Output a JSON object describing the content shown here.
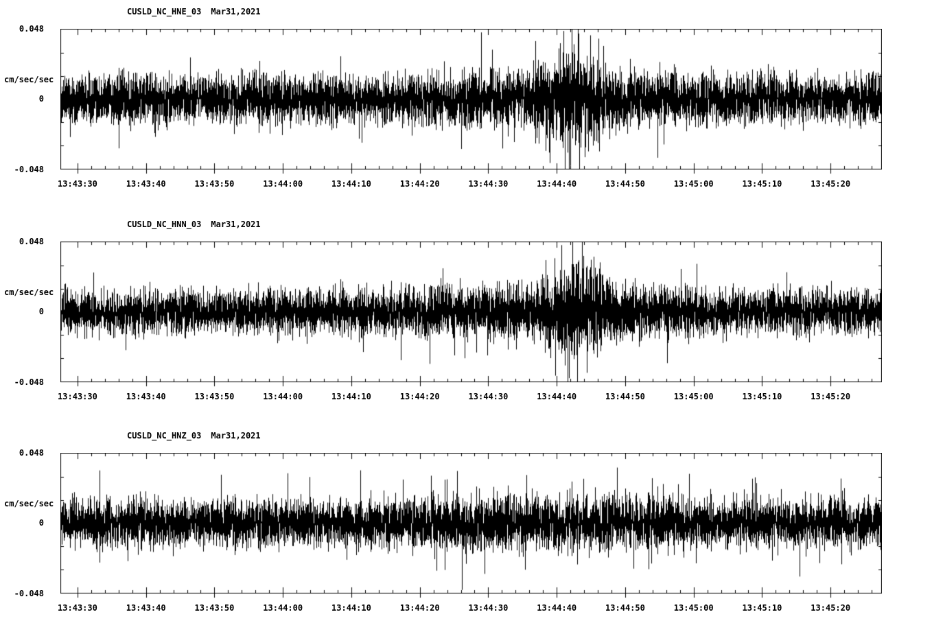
{
  "page": {
    "background": "#ffffff",
    "trace_color": "#000000"
  },
  "chart_data": [
    {
      "type": "line",
      "kind": "seismogram",
      "station": "CUSLD_NC_HNE_03",
      "date": "Mar31,2021",
      "ylabel": "cm/sec/sec",
      "y_top_label": "0.048",
      "y_zero_label": "0",
      "y_bottom_label": "-0.048",
      "ylim": [
        -0.048,
        0.048
      ],
      "x_ticks": [
        "13:43:30",
        "13:43:40",
        "13:43:50",
        "13:44:00",
        "13:44:10",
        "13:44:20",
        "13:44:30",
        "13:44:40",
        "13:44:50",
        "13:45:00",
        "13:45:10",
        "13:45:20"
      ],
      "time_span_sec": 120,
      "first_tick_offset_sec": 2.5,
      "major_tick_step_sec": 10,
      "minor_tick_step_sec": 2,
      "y_minor_ticks": [
        -0.032,
        -0.016,
        0.016,
        0.032
      ],
      "grid": false,
      "seed": 101,
      "spike_prob": 0.025,
      "envelope": [
        [
          0,
          0.016
        ],
        [
          0.08,
          0.017
        ],
        [
          0.15,
          0.015
        ],
        [
          0.22,
          0.017
        ],
        [
          0.3,
          0.016
        ],
        [
          0.38,
          0.015
        ],
        [
          0.45,
          0.017
        ],
        [
          0.52,
          0.018
        ],
        [
          0.56,
          0.019
        ],
        [
          0.6,
          0.026
        ],
        [
          0.62,
          0.032
        ],
        [
          0.64,
          0.03
        ],
        [
          0.66,
          0.024
        ],
        [
          0.69,
          0.02
        ],
        [
          0.73,
          0.018
        ],
        [
          0.8,
          0.017
        ],
        [
          0.88,
          0.018
        ],
        [
          0.95,
          0.016
        ],
        [
          1,
          0.017
        ]
      ],
      "transients": [
        [
          0.115,
          -0.026
        ],
        [
          0.367,
          -0.03
        ],
        [
          0.512,
          0.046
        ],
        [
          0.538,
          -0.034
        ],
        [
          0.578,
          0.04
        ],
        [
          0.596,
          -0.044
        ],
        [
          0.612,
          0.047
        ],
        [
          0.621,
          -0.046
        ],
        [
          0.63,
          0.048
        ],
        [
          0.638,
          -0.04
        ],
        [
          0.645,
          0.044
        ],
        [
          0.656,
          -0.036
        ]
      ]
    },
    {
      "type": "line",
      "kind": "seismogram",
      "station": "CUSLD_NC_HNN_03",
      "date": "Mar31,2021",
      "ylabel": "cm/sec/sec",
      "y_top_label": "0.048",
      "y_zero_label": "0",
      "y_bottom_label": "-0.048",
      "ylim": [
        -0.048,
        0.048
      ],
      "x_ticks": [
        "13:43:30",
        "13:43:40",
        "13:43:50",
        "13:44:00",
        "13:44:10",
        "13:44:20",
        "13:44:30",
        "13:44:40",
        "13:44:50",
        "13:45:00",
        "13:45:10",
        "13:45:20"
      ],
      "time_span_sec": 120,
      "first_tick_offset_sec": 2.5,
      "major_tick_step_sec": 10,
      "minor_tick_step_sec": 2,
      "y_minor_ticks": [
        -0.032,
        -0.016,
        0.016,
        0.032
      ],
      "grid": false,
      "seed": 202,
      "spike_prob": 0.02,
      "envelope": [
        [
          0,
          0.014
        ],
        [
          0.1,
          0.015
        ],
        [
          0.2,
          0.014
        ],
        [
          0.3,
          0.015
        ],
        [
          0.4,
          0.016
        ],
        [
          0.47,
          0.017
        ],
        [
          0.54,
          0.018
        ],
        [
          0.59,
          0.02
        ],
        [
          0.61,
          0.03
        ],
        [
          0.625,
          0.036
        ],
        [
          0.64,
          0.032
        ],
        [
          0.66,
          0.024
        ],
        [
          0.69,
          0.019
        ],
        [
          0.75,
          0.017
        ],
        [
          0.85,
          0.016
        ],
        [
          0.95,
          0.015
        ],
        [
          1,
          0.016
        ]
      ],
      "transients": [
        [
          0.3,
          -0.022
        ],
        [
          0.465,
          0.03
        ],
        [
          0.492,
          -0.032
        ],
        [
          0.506,
          -0.028
        ],
        [
          0.52,
          -0.03
        ],
        [
          0.545,
          -0.026
        ],
        [
          0.602,
          -0.044
        ],
        [
          0.61,
          0.046
        ],
        [
          0.617,
          -0.05
        ],
        [
          0.623,
          0.052
        ],
        [
          0.629,
          -0.048
        ],
        [
          0.635,
          0.05
        ],
        [
          0.641,
          -0.042
        ],
        [
          0.649,
          0.038
        ]
      ]
    },
    {
      "type": "line",
      "kind": "seismogram",
      "station": "CUSLD_NC_HNZ_03",
      "date": "Mar31,2021",
      "ylabel": "cm/sec/sec",
      "y_top_label": "0.048",
      "y_zero_label": "0",
      "y_bottom_label": "-0.048",
      "ylim": [
        -0.048,
        0.048
      ],
      "x_ticks": [
        "13:43:30",
        "13:43:40",
        "13:43:50",
        "13:44:00",
        "13:44:10",
        "13:44:20",
        "13:44:30",
        "13:44:40",
        "13:44:50",
        "13:45:00",
        "13:45:10",
        "13:45:20"
      ],
      "time_span_sec": 120,
      "first_tick_offset_sec": 2.5,
      "major_tick_step_sec": 10,
      "minor_tick_step_sec": 2,
      "y_minor_ticks": [
        -0.032,
        -0.016,
        0.016,
        0.032
      ],
      "grid": false,
      "seed": 303,
      "spike_prob": 0.06,
      "envelope": [
        [
          0,
          0.013
        ],
        [
          0.06,
          0.016
        ],
        [
          0.12,
          0.015
        ],
        [
          0.2,
          0.016
        ],
        [
          0.3,
          0.015
        ],
        [
          0.4,
          0.016
        ],
        [
          0.45,
          0.018
        ],
        [
          0.5,
          0.019
        ],
        [
          0.55,
          0.018
        ],
        [
          0.6,
          0.018
        ],
        [
          0.65,
          0.017
        ],
        [
          0.7,
          0.018
        ],
        [
          0.76,
          0.016
        ],
        [
          0.82,
          0.017
        ],
        [
          0.9,
          0.015
        ],
        [
          1,
          0.016
        ]
      ],
      "transients": [
        [
          0.36,
          -0.022
        ],
        [
          0.468,
          0.03
        ],
        [
          0.483,
          0.036
        ],
        [
          0.489,
          -0.046
        ],
        [
          0.494,
          -0.028
        ],
        [
          0.51,
          0.024
        ],
        [
          0.545,
          0.026
        ],
        [
          0.58,
          0.022
        ],
        [
          0.62,
          0.024
        ]
      ]
    }
  ]
}
